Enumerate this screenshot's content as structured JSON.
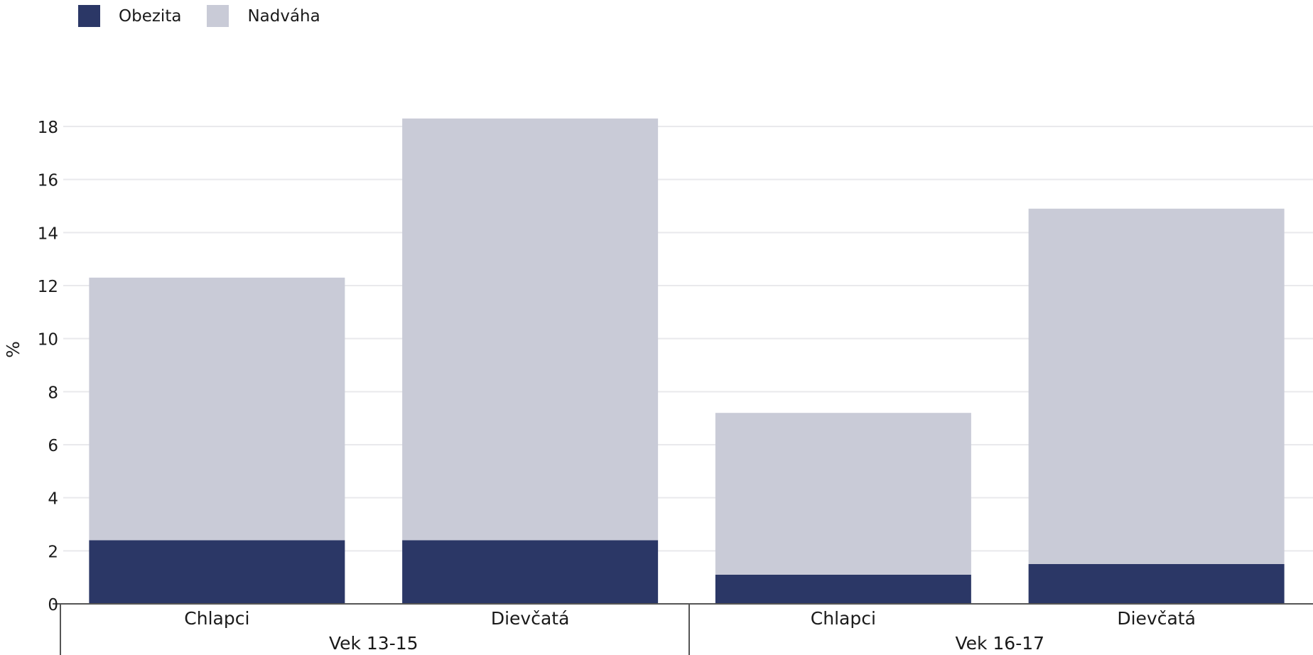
{
  "chart_data": {
    "type": "bar",
    "stacked": true,
    "groups": [
      "Vek 13-15",
      "Vek 16-17"
    ],
    "categories": [
      "Chlapci",
      "Dievčatá",
      "Chlapci",
      "Dievčatá"
    ],
    "category_group": [
      0,
      0,
      1,
      1
    ],
    "series": [
      {
        "name": "Obezita",
        "color": "#2b3766",
        "values": [
          2.4,
          2.4,
          1.1,
          1.5
        ]
      },
      {
        "name": "Nadváha",
        "color": "#c9cbd7",
        "values": [
          9.9,
          15.9,
          6.1,
          13.4
        ]
      }
    ],
    "ylabel": "%",
    "ylim": [
      0,
      18
    ],
    "yticks": [
      "0",
      "2",
      "4",
      "6",
      "8",
      "10",
      "12",
      "14",
      "16",
      "18"
    ],
    "grid": true,
    "legend_position": "top-left"
  }
}
